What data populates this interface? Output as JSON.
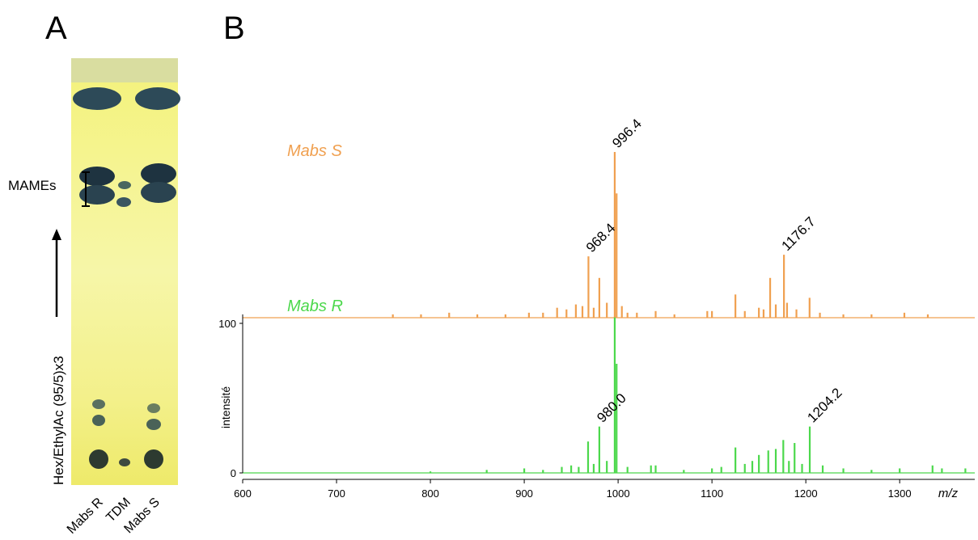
{
  "panel_labels": [
    "A",
    "B"
  ],
  "tlc": {
    "band_label": "MAMEs",
    "solvent": "Hex/EthylAc (95/5)x3",
    "lanes": [
      "Mabs R",
      "TDM",
      "Mabs S"
    ]
  },
  "chart_data": [
    {
      "type": "spectrum",
      "series": [
        {
          "name": "Mabs S",
          "color": "#f0a050",
          "x": [
            760,
            790,
            820,
            850,
            880,
            905,
            920,
            935,
            945,
            955,
            962,
            968.4,
            974,
            980,
            988,
            996.4,
            998.4,
            1004,
            1010,
            1020,
            1040,
            1060,
            1095,
            1100,
            1125,
            1135,
            1150,
            1155,
            1162,
            1168,
            1176.7,
            1180,
            1190,
            1204,
            1215,
            1240,
            1270,
            1305,
            1330
          ],
          "values": [
            2,
            2,
            3,
            2,
            2,
            3,
            3,
            6,
            5,
            8,
            7,
            37,
            6,
            24,
            9,
            100,
            75,
            7,
            3,
            3,
            4,
            2,
            4,
            4,
            14,
            4,
            6,
            5,
            24,
            8,
            38,
            9,
            5,
            12,
            3,
            2,
            2,
            3,
            2
          ]
        }
      ],
      "annotations": [
        {
          "label": "996.4",
          "x": 996.4,
          "y": 100
        },
        {
          "label": "968.4",
          "x": 968.4,
          "y": 37
        },
        {
          "label": "1176.7",
          "x": 1176.7,
          "y": 38
        }
      ],
      "xlim": [
        600,
        1380
      ],
      "ylim": [
        0,
        100
      ]
    },
    {
      "type": "spectrum",
      "series": [
        {
          "name": "Mabs R",
          "color": "#4cd84c",
          "x": [
            800,
            860,
            900,
            920,
            940,
            950,
            958,
            968,
            974,
            980.0,
            988,
            996.4,
            998.4,
            1010,
            1035,
            1040,
            1070,
            1100,
            1110,
            1125,
            1135,
            1143,
            1150,
            1160,
            1168,
            1176,
            1182,
            1188,
            1196,
            1204.2,
            1218,
            1240,
            1270,
            1300,
            1335,
            1345,
            1370
          ],
          "values": [
            1,
            2,
            3,
            2,
            4,
            5,
            4,
            21,
            6,
            31,
            8,
            104,
            73,
            4,
            5,
            5,
            2,
            3,
            4,
            17,
            6,
            8,
            12,
            15,
            16,
            22,
            8,
            20,
            6,
            31,
            5,
            3,
            2,
            3,
            5,
            3,
            3
          ]
        }
      ],
      "annotations": [
        {
          "label": "980.0",
          "x": 980.0,
          "y": 31
        },
        {
          "label": "1204.2",
          "x": 1204.2,
          "y": 31
        }
      ],
      "xlim": [
        600,
        1380
      ],
      "ylim": [
        0,
        106
      ],
      "yticks": [
        0,
        100
      ],
      "xticks": [
        600,
        700,
        800,
        900,
        1000,
        1100,
        1200,
        1300
      ],
      "xlabel": "m/z",
      "ylabel": "intensité"
    }
  ]
}
